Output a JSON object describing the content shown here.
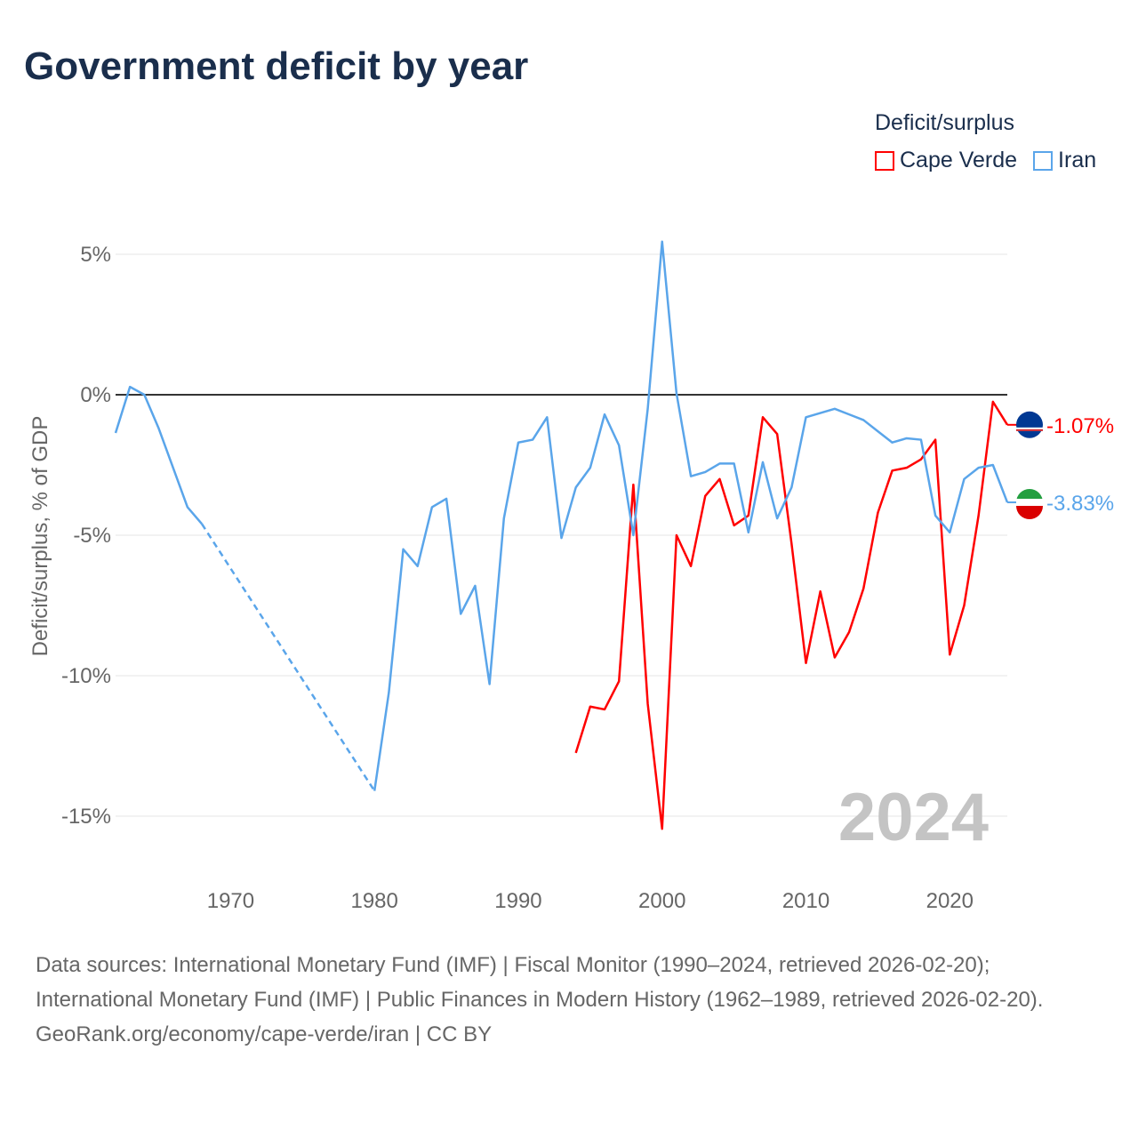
{
  "chart_data": {
    "type": "line",
    "title": "Government deficit by year",
    "ylabel": "Deficit/surplus, % of GDP",
    "xlabel": "",
    "xlim": [
      1962,
      2024
    ],
    "ylim": [
      -16.5,
      6
    ],
    "yticks": [
      5,
      0,
      -5,
      -10,
      -15
    ],
    "ytick_labels": [
      "5%",
      "0%",
      "-5%",
      "-10%",
      "-15%"
    ],
    "xticks": [
      1970,
      1980,
      1990,
      2000,
      2010,
      2020
    ],
    "xtick_labels": [
      "1970",
      "1980",
      "1990",
      "2000",
      "2010",
      "2020"
    ],
    "legend_title": "Deficit/surplus",
    "legend_position": "top-right",
    "grid": true,
    "year_watermark": "2024",
    "series": [
      {
        "name": "Cape Verde",
        "color": "#ff0000",
        "end_label": "-1.07%",
        "x": [
          1994,
          1995,
          1996,
          1997,
          1998,
          1999,
          2000,
          2001,
          2002,
          2003,
          2004,
          2005,
          2006,
          2007,
          2008,
          2009,
          2010,
          2011,
          2012,
          2013,
          2014,
          2015,
          2016,
          2017,
          2018,
          2019,
          2020,
          2021,
          2022,
          2023,
          2024
        ],
        "values": [
          -12.75,
          -11.1,
          -11.2,
          -10.2,
          -3.2,
          -11.0,
          -15.45,
          -5.0,
          -6.1,
          -3.6,
          -3.0,
          -4.65,
          -4.3,
          -0.8,
          -1.4,
          -5.3,
          -9.55,
          -7.0,
          -9.35,
          -8.45,
          -6.9,
          -4.2,
          -2.7,
          -2.6,
          -2.3,
          -1.6,
          -9.25,
          -7.5,
          -4.3,
          -0.25,
          -1.07
        ]
      },
      {
        "name": "Iran",
        "color": "#5aa5ea",
        "end_label": "-3.83%",
        "x": [
          1962,
          1963,
          1964,
          1965,
          1966,
          1967,
          1968,
          1980,
          1981,
          1982,
          1983,
          1984,
          1985,
          1986,
          1987,
          1988,
          1989,
          1990,
          1991,
          1992,
          1993,
          1994,
          1995,
          1996,
          1997,
          1998,
          1999,
          2000,
          2001,
          2002,
          2003,
          2004,
          2005,
          2006,
          2007,
          2008,
          2009,
          2010,
          2011,
          2012,
          2013,
          2014,
          2015,
          2016,
          2017,
          2018,
          2019,
          2020,
          2021,
          2022,
          2023,
          2024
        ],
        "values": [
          -1.36,
          0.28,
          0.0,
          -1.2,
          -2.6,
          -4.0,
          -4.6,
          -14.1,
          -10.6,
          -5.5,
          -6.1,
          -4.0,
          -3.7,
          -7.8,
          -6.8,
          -10.3,
          -4.4,
          -1.7,
          -1.6,
          -0.8,
          -5.1,
          -3.3,
          -2.6,
          -0.7,
          -1.8,
          -5.0,
          -0.5,
          5.45,
          0.05,
          -2.9,
          -2.75,
          -2.45,
          -2.45,
          -4.9,
          -2.4,
          -4.4,
          -3.3,
          -0.8,
          -0.65,
          -0.5,
          -0.7,
          -0.9,
          -1.3,
          -1.7,
          -1.55,
          -1.6,
          -4.3,
          -4.9,
          -3.0,
          -2.6,
          -2.5,
          -3.83
        ]
      }
    ]
  },
  "footer": {
    "sources": "Data sources: International Monetary Fund (IMF) | Fiscal Monitor (1990–2024, retrieved 2026-02-20); International Monetary Fund (IMF) | Public Finances in Modern History (1962–1989, retrieved 2026-02-20).",
    "link": "GeoRank.org/economy/cape-verde/iran | CC BY"
  }
}
